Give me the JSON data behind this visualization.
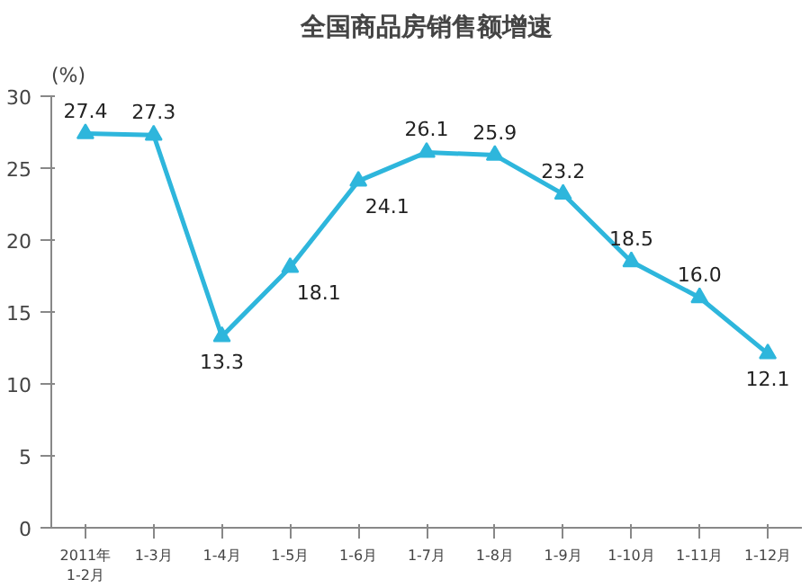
{
  "chart_data": {
    "type": "line",
    "title": "全国商品房销售额增速",
    "ylabel": "(%)",
    "categories": [
      "2011年\n1-2月",
      "1-3月",
      "1-4月",
      "1-5月",
      "1-6月",
      "1-7月",
      "1-8月",
      "1-9月",
      "1-10月",
      "1-11月",
      "1-12月"
    ],
    "series": [
      {
        "color": "#2eb6dc",
        "values": [
          27.4,
          27.3,
          13.3,
          18.1,
          24.1,
          26.1,
          25.9,
          23.2,
          18.5,
          16.0,
          12.1
        ]
      }
    ],
    "value_labels": [
      "27.4",
      "27.3",
      "13.3",
      "18.1",
      "24.1",
      "26.1",
      "25.9",
      "23.2",
      "18.5",
      "16.0",
      "12.1"
    ],
    "ylim": [
      0,
      30
    ],
    "yticks": [
      0,
      5,
      10,
      15,
      20,
      25,
      30
    ],
    "grid": false,
    "marker": "triangle",
    "line_style": "solid"
  }
}
